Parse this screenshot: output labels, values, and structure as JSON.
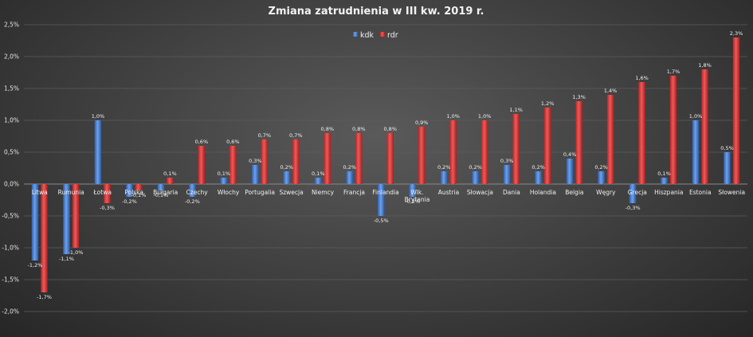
{
  "chart_data": {
    "type": "bar",
    "title": "Zmiana zatrudnienia w III kw. 2019 r.",
    "xlabel": "",
    "ylabel": "",
    "ylim": [
      -2.0,
      2.5
    ],
    "ytick_labels": [
      "2,5%",
      "2,0%",
      "1,5%",
      "1,0%",
      "0,5%",
      "0,0%",
      "-0,5%",
      "-1,0%",
      "-1,5%",
      "-2,0%"
    ],
    "ytick_values": [
      2.5,
      2.0,
      1.5,
      1.0,
      0.5,
      0.0,
      -0.5,
      -1.0,
      -1.5,
      -2.0
    ],
    "grid": true,
    "legend_position": "top-center",
    "categories": [
      "Litwa",
      "Rumunia",
      "Łotwa",
      "Polska",
      "Bułgaria",
      "Czechy",
      "Włochy",
      "Portugalia",
      "Szwecja",
      "Niemcy",
      "Francja",
      "Finlandia",
      "Wlk. Brytania",
      "Austria",
      "Słowacja",
      "Dania",
      "Holandia",
      "Belgia",
      "Węgry",
      "Grecja",
      "Hiszpania",
      "Estonia",
      "Słowenia"
    ],
    "series": [
      {
        "name": "kdk",
        "color": "#4a7fd0",
        "values": [
          -1.2,
          -1.1,
          1.0,
          -0.2,
          -0.1,
          -0.2,
          0.1,
          0.3,
          0.2,
          0.1,
          0.2,
          -0.5,
          -0.2,
          0.2,
          0.2,
          0.3,
          0.2,
          0.4,
          0.2,
          -0.3,
          0.1,
          1.0,
          0.5
        ],
        "labels": [
          "-1,2%",
          "-1,1%",
          "1,0%",
          "-0,2%",
          "-0,1%",
          "-0,2%",
          "0,1%",
          "0,3%",
          "0,2%",
          "0,1%",
          "0,2%",
          "-0,5%",
          "-0,2%",
          "0,2%",
          "0,2%",
          "0,3%",
          "0,2%",
          "0,4%",
          "0,2%",
          "-0,3%",
          "0,1%",
          "1,0%",
          "0,5%"
        ]
      },
      {
        "name": "rdr",
        "color": "#d83a3a",
        "values": [
          -1.7,
          -1.0,
          -0.3,
          -0.1,
          0.1,
          0.6,
          0.6,
          0.7,
          0.7,
          0.8,
          0.8,
          0.8,
          0.9,
          1.0,
          1.0,
          1.1,
          1.2,
          1.3,
          1.4,
          1.6,
          1.7,
          1.8,
          2.3
        ],
        "labels": [
          "-1,7%",
          "-1,0%",
          "-0,3%",
          "-0,1%",
          "0,1%",
          "0,6%",
          "0,6%",
          "0,7%",
          "0,7%",
          "0,8%",
          "0,8%",
          "0,8%",
          "0,9%",
          "1,0%",
          "1,0%",
          "1,1%",
          "1,2%",
          "1,3%",
          "1,4%",
          "1,6%",
          "1,7%",
          "1,8%",
          "2,3%"
        ]
      }
    ]
  }
}
